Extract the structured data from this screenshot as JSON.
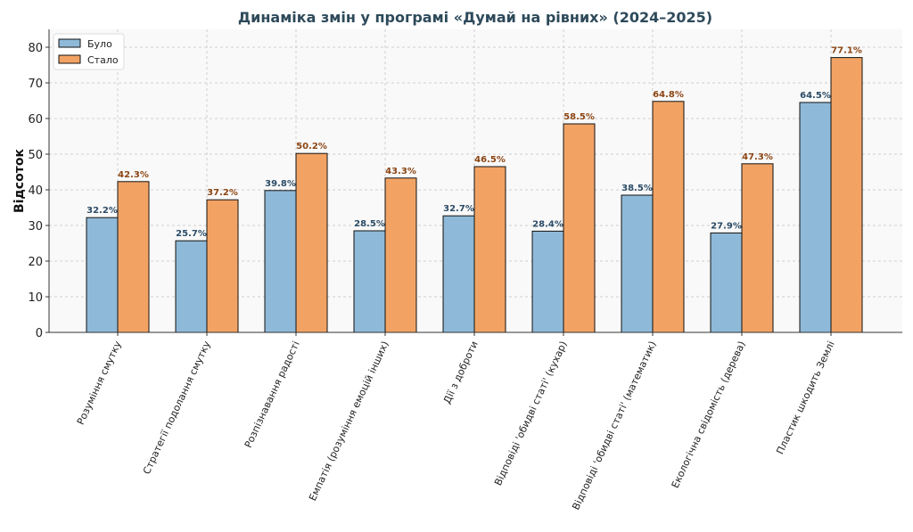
{
  "chart_data": {
    "type": "bar",
    "title": "Динаміка змін у програмі «Думай на рівних» (2024–2025)",
    "xlabel": "",
    "ylabel": "Відсоток",
    "ylim": [
      0,
      85
    ],
    "yticks": [
      0,
      10,
      20,
      30,
      40,
      50,
      60,
      70,
      80
    ],
    "grid": true,
    "legend_position": "top-left",
    "categories": [
      "Розуміння смутку",
      "Стратегії подолання смутку",
      "Розпізнавання радості",
      "Емпатія (розуміння емоцій інших)",
      "Дії з доброти",
      "Відповіді 'обидві статі' (кухар)",
      "Відповіді 'обидві статі' (математик)",
      "Екологічна свідомість (дерева)",
      "Пластик шкодить Землі"
    ],
    "series": [
      {
        "name": "Було",
        "color": "#8fb9d8",
        "label_color": "#2b4b66",
        "values": [
          32.2,
          25.7,
          39.8,
          28.5,
          32.7,
          28.4,
          38.5,
          27.9,
          64.5
        ],
        "labels": [
          "32.2%",
          "25.7%",
          "39.8%",
          "28.5%",
          "32.7%",
          "28.4%",
          "38.5%",
          "27.9%",
          "64.5%"
        ]
      },
      {
        "name": "Стало",
        "color": "#f2a364",
        "label_color": "#8b4513",
        "values": [
          42.3,
          37.2,
          50.2,
          43.3,
          46.5,
          58.5,
          64.8,
          47.3,
          77.1
        ],
        "labels": [
          "42.3%",
          "37.2%",
          "50.2%",
          "43.3%",
          "46.5%",
          "58.5%",
          "64.8%",
          "47.3%",
          "77.1%"
        ]
      }
    ],
    "title_color": "#2e4a5a"
  }
}
